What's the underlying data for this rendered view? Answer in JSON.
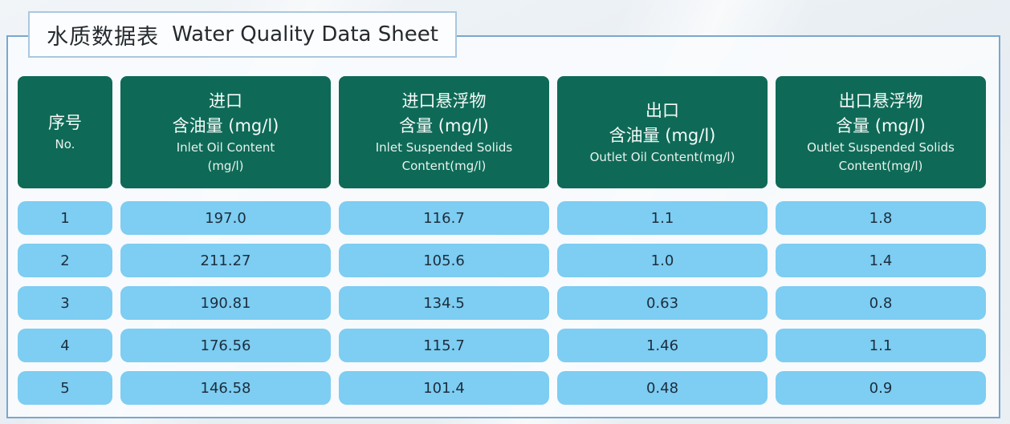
{
  "page": {
    "title_zh": "水质数据表",
    "title_en": "Water Quality Data Sheet"
  },
  "table": {
    "headers": [
      {
        "lines": [
          "序号",
          "No."
        ]
      },
      {
        "lines": [
          "进口",
          "含油量 (mg/l)",
          "Inlet Oil Content",
          "(mg/l)"
        ]
      },
      {
        "lines": [
          "进口悬浮物",
          "含量 (mg/l)",
          "Inlet Suspended Solids",
          "Content(mg/l)"
        ]
      },
      {
        "lines": [
          "出口",
          "含油量 (mg/l)",
          "Outlet Oil Content(mg/l)"
        ]
      },
      {
        "lines": [
          "出口悬浮物",
          "含量 (mg/l)",
          "Outlet Suspended Solids",
          "Content(mg/l)"
        ]
      }
    ],
    "rows": [
      {
        "cells": [
          "1",
          "197.0",
          "116.7",
          "1.1",
          "1.8"
        ]
      },
      {
        "cells": [
          "2",
          "211.27",
          "105.6",
          "1.0",
          "1.4"
        ]
      },
      {
        "cells": [
          "3",
          "190.81",
          "134.5",
          "0.63",
          "0.8"
        ]
      },
      {
        "cells": [
          "4",
          "176.56",
          "115.7",
          "1.46",
          "1.1"
        ]
      },
      {
        "cells": [
          "5",
          "146.58",
          "101.4",
          "0.48",
          "0.9"
        ]
      }
    ]
  },
  "chart_data": {
    "type": "table",
    "title": "水质数据表 Water Quality Data Sheet",
    "columns": [
      "序号 No.",
      "进口含油量 (mg/l) Inlet Oil Content (mg/l)",
      "进口悬浮物含量 (mg/l) Inlet Suspended Solids Content(mg/l)",
      "出口含油量 (mg/l) Outlet Oil Content(mg/l)",
      "出口悬浮物含量 (mg/l) Outlet Suspended Solids Content(mg/l)"
    ],
    "rows": [
      [
        1,
        197.0,
        116.7,
        1.1,
        1.8
      ],
      [
        2,
        211.27,
        105.6,
        1.0,
        1.4
      ],
      [
        3,
        190.81,
        134.5,
        0.63,
        0.8
      ],
      [
        4,
        176.56,
        115.7,
        1.46,
        1.1
      ],
      [
        5,
        146.58,
        101.4,
        0.48,
        0.9
      ]
    ]
  },
  "colors": {
    "header_bg": "#0E6A57",
    "header_text": "#FFFFFF",
    "cell_bg": "#7ECDF2",
    "cell_text": "#1C2E3D",
    "frame_border": "#7AA7CD",
    "title_box_border": "#A9C8E0",
    "page_bg": "#E9EEF3"
  }
}
